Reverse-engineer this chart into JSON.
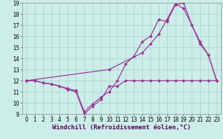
{
  "background_color": "#cceee8",
  "grid_color": "#aacccc",
  "line_color": "#993399",
  "marker": "D",
  "markersize": 2.5,
  "linewidth": 0.9,
  "xlim": [
    -0.5,
    23.5
  ],
  "ylim": [
    9,
    19
  ],
  "yticks": [
    9,
    10,
    11,
    12,
    13,
    14,
    15,
    16,
    17,
    18,
    19
  ],
  "xticks": [
    0,
    1,
    2,
    3,
    4,
    5,
    6,
    7,
    8,
    9,
    10,
    11,
    12,
    13,
    14,
    15,
    16,
    17,
    18,
    19,
    20,
    21,
    22,
    23
  ],
  "xlabel": "Windchill (Refroidissement éolien,°C)",
  "xlabel_fontsize": 6.5,
  "tick_fontsize": 5.5,
  "series1_x": [
    0,
    1,
    2,
    3,
    4,
    5,
    6,
    7,
    8,
    9,
    10,
    11,
    12,
    13,
    14,
    15,
    16,
    17,
    18,
    19,
    20,
    21,
    22,
    23
  ],
  "series1_y": [
    12,
    12,
    11.8,
    11.7,
    11.5,
    11.2,
    11.0,
    9.0,
    9.7,
    10.3,
    11.5,
    11.5,
    12.0,
    12.0,
    12.0,
    12.0,
    12.0,
    12.0,
    12.0,
    12.0,
    12.0,
    12.0,
    12.0,
    12.0
  ],
  "series2_x": [
    0,
    1,
    2,
    3,
    4,
    5,
    6,
    7,
    8,
    9,
    10,
    11,
    12,
    13,
    14,
    15,
    16,
    17,
    18,
    19,
    20,
    21,
    22,
    23
  ],
  "series2_y": [
    12,
    12,
    11.8,
    11.7,
    11.5,
    11.3,
    11.1,
    9.2,
    9.9,
    10.5,
    11.0,
    12.0,
    13.5,
    14.2,
    15.5,
    16.0,
    17.5,
    17.3,
    18.8,
    19.0,
    17.0,
    15.3,
    14.3,
    12.0
  ],
  "series3_x": [
    0,
    23
  ],
  "series3_y": [
    12,
    12
  ],
  "series4_x": [
    0,
    10,
    14,
    15,
    16,
    17,
    18,
    19,
    20,
    21,
    22,
    23
  ],
  "series4_y": [
    12,
    13.0,
    14.5,
    15.3,
    16.2,
    17.5,
    18.9,
    18.5,
    17.0,
    15.5,
    14.3,
    12.0
  ]
}
